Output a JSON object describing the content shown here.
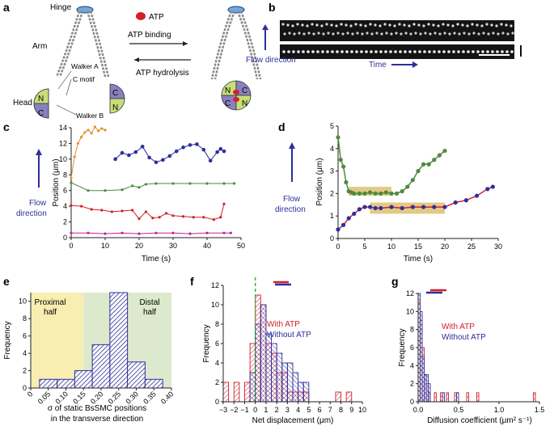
{
  "colors": {
    "blue": "#2e2e9c",
    "red": "#d0202a",
    "green": "#4e8a3e",
    "orange": "#e0922a",
    "magenta": "#c020a0",
    "lightgreen": "#c8dd78",
    "purple": "#8880c0",
    "yellow": "#f7eeb0",
    "paleGreen": "#dce9cc",
    "band": "#d7b860",
    "dashGreen": "#2fae3a"
  },
  "panels": {
    "a": "a",
    "b": "b",
    "c": "c",
    "d": "d",
    "e": "e",
    "f": "f",
    "g": "g"
  },
  "a": {
    "hinge": "Hinge",
    "arm": "Arm",
    "head": "Head",
    "walker_a": "Walker A",
    "walker_b": "Walker B",
    "c_motif": "C motif",
    "atp": "ATP",
    "atp_binding": "ATP binding",
    "atp_hydrolysis": "ATP hydrolysis",
    "n": "N",
    "c": "C"
  },
  "b": {
    "flow_direction": "Flow direction",
    "time": "Time"
  },
  "chart_data": [
    {
      "panel": "c",
      "type": "scatter",
      "xlabel": "Time (s)",
      "ylabel": "Position (μm)",
      "side_label_1": "Flow",
      "side_label_2": "direction",
      "xlim": [
        0,
        50
      ],
      "ylim": [
        0,
        14
      ],
      "xticks": [
        "0",
        "10",
        "20",
        "30",
        "40",
        "50"
      ],
      "yticks": [
        "0",
        "2",
        "4",
        "6",
        "8",
        "10",
        "12",
        "14"
      ],
      "series": [
        {
          "name": "orange",
          "color": "#e0922a",
          "x": [
            0,
            1,
            2,
            3,
            4,
            5,
            6,
            7,
            8,
            9,
            10
          ],
          "y": [
            7.6,
            10.3,
            12.0,
            12.8,
            13.4,
            13.7,
            13.3,
            14.1,
            13.6,
            13.9,
            13.7
          ]
        },
        {
          "name": "blue",
          "color": "#2e2e9c",
          "x": [
            13,
            15,
            17,
            19,
            21,
            23,
            25,
            27,
            29,
            31,
            33,
            35,
            37,
            39,
            41,
            43,
            44,
            45
          ],
          "y": [
            10.0,
            10.8,
            10.5,
            10.9,
            11.6,
            10.2,
            9.6,
            9.9,
            10.4,
            11.0,
            11.5,
            11.8,
            11.9,
            11.2,
            9.8,
            10.9,
            11.3,
            11.0
          ]
        },
        {
          "name": "green",
          "color": "#4e8a3e",
          "x": [
            0,
            5,
            10,
            15,
            18,
            20,
            22,
            25,
            30,
            35,
            40,
            45,
            48
          ],
          "y": [
            7.0,
            6.0,
            6.0,
            6.1,
            6.6,
            6.4,
            6.8,
            6.9,
            6.9,
            6.9,
            6.9,
            6.9,
            6.9
          ]
        },
        {
          "name": "red",
          "color": "#d0202a",
          "x": [
            0,
            3,
            6,
            9,
            12,
            15,
            18,
            20,
            22,
            24,
            26,
            28,
            30,
            33,
            36,
            39,
            42,
            44,
            45
          ],
          "y": [
            4.1,
            4.0,
            3.6,
            3.5,
            3.3,
            3.4,
            3.5,
            2.4,
            3.3,
            2.5,
            2.6,
            3.1,
            2.8,
            2.7,
            2.6,
            2.6,
            2.3,
            2.6,
            4.3
          ]
        },
        {
          "name": "magenta",
          "color": "#c020a0",
          "x": [
            0,
            5,
            10,
            15,
            20,
            25,
            30,
            35,
            40,
            45,
            47
          ],
          "y": [
            0.6,
            0.6,
            0.5,
            0.6,
            0.5,
            0.6,
            0.6,
            0.5,
            0.6,
            0.6,
            0.6
          ]
        }
      ]
    },
    {
      "panel": "d",
      "type": "scatter",
      "xlabel": "Time (s)",
      "ylabel": "Position (μm)",
      "side_label_1": "Flow",
      "side_label_2": "direction",
      "xlim": [
        0,
        30
      ],
      "ylim": [
        0,
        5
      ],
      "xticks": [
        "0",
        "5",
        "10",
        "15",
        "20",
        "25",
        "30"
      ],
      "yticks": [
        "0",
        "1",
        "2",
        "3",
        "4",
        "5"
      ],
      "series": [
        {
          "name": "green",
          "color": "#4e8a3e",
          "x": [
            0,
            0.5,
            1,
            1.5,
            2,
            2.5,
            3,
            4,
            5,
            6,
            7,
            8,
            9,
            10,
            11,
            12,
            13,
            14,
            15,
            16,
            17,
            18,
            19,
            20
          ],
          "y": [
            4.5,
            3.5,
            3.2,
            2.5,
            2.1,
            2.05,
            2.0,
            2.0,
            2.0,
            2.05,
            2.0,
            2.0,
            2.05,
            2.0,
            2.0,
            2.1,
            2.3,
            2.6,
            3.0,
            3.3,
            3.3,
            3.5,
            3.7,
            3.9
          ]
        },
        {
          "name": "blue",
          "color": "#2e2e9c",
          "x": [
            0,
            1,
            2,
            3,
            4,
            5,
            6,
            7,
            8,
            10,
            12,
            14,
            16,
            18,
            20,
            22,
            24,
            26,
            28,
            29
          ],
          "y": [
            0.4,
            0.6,
            0.9,
            1.1,
            1.3,
            1.4,
            1.4,
            1.35,
            1.35,
            1.4,
            1.35,
            1.4,
            1.4,
            1.4,
            1.4,
            1.6,
            1.7,
            1.9,
            2.2,
            2.3
          ]
        }
      ],
      "highlight_ranges": [
        {
          "x": [
            2,
            10
          ],
          "y": [
            1.9,
            2.3
          ]
        },
        {
          "x": [
            6,
            20
          ],
          "y": [
            1.1,
            1.6
          ]
        }
      ]
    },
    {
      "panel": "e",
      "type": "bar",
      "xlabel_1": "σ of static BsSMC positions",
      "xlabel_2": "in the transverse direction",
      "ylabel": "Frequency",
      "xlim": [
        0,
        0.4
      ],
      "ylim": [
        0,
        11
      ],
      "xticks": [
        "0",
        "0.05",
        "0.10",
        "0.15",
        "0.20",
        "0.25",
        "0.30",
        "0.35",
        "0.40"
      ],
      "yticks": [
        "0",
        "2",
        "4",
        "6",
        "8",
        "10"
      ],
      "region_labels": {
        "proximal_1": "Proximal",
        "proximal_2": "half",
        "distal_1": "Distal",
        "distal_2": "half"
      },
      "bins": [
        0.05,
        0.1,
        0.15,
        0.2,
        0.25,
        0.3,
        0.35
      ],
      "values": [
        1,
        1,
        2,
        5,
        11,
        3,
        1
      ]
    },
    {
      "panel": "f",
      "type": "bar",
      "xlabel": "Net displacement (μm)",
      "ylabel": "Frequency",
      "xlim": [
        -3,
        10
      ],
      "ylim": [
        0,
        12
      ],
      "xticks": [
        "−3",
        "−2",
        "−1",
        "0",
        "1",
        "2",
        "3",
        "4",
        "5",
        "6",
        "7",
        "8",
        "9",
        "10"
      ],
      "yticks": [
        "0",
        "2",
        "4",
        "6",
        "8",
        "10",
        "12"
      ],
      "legend": {
        "with": "With ATP",
        "without": "Without ATP"
      },
      "series": [
        {
          "name": "With ATP",
          "color": "#d0202a",
          "bin_starts": [
            -3,
            -2,
            -1,
            -0.5,
            0,
            0.5,
            1,
            1.5,
            2,
            2.5,
            3,
            3.5,
            4,
            4.5,
            7.5,
            8.5
          ],
          "values": [
            2,
            2,
            2,
            6,
            11,
            10,
            6,
            5,
            3,
            3,
            1,
            1,
            1,
            1,
            1,
            1
          ]
        },
        {
          "name": "Without ATP",
          "color": "#2e2e9c",
          "bin_starts": [
            -0.5,
            0,
            0.5,
            1,
            1.5,
            2,
            2.5,
            3,
            3.5,
            4,
            4.5
          ],
          "values": [
            3,
            8,
            10,
            7,
            6,
            5,
            4,
            4,
            3,
            2,
            2
          ]
        }
      ]
    },
    {
      "panel": "g",
      "type": "bar",
      "xlabel": "Diffusion coefficient (μm² s⁻¹)",
      "ylabel": "Frequency",
      "xlim": [
        0,
        1.5
      ],
      "ylim": [
        0,
        12
      ],
      "xticks": [
        "0.0",
        "0.5",
        "1.0",
        "1.5"
      ],
      "yticks": [
        "0",
        "2",
        "4",
        "6",
        "8",
        "10",
        "12"
      ],
      "legend": {
        "with": "With ATP",
        "without": "Without ATP"
      },
      "series": [
        {
          "name": "With ATP",
          "color": "#d0202a",
          "bin_starts": [
            0,
            0.025,
            0.05,
            0.075,
            0.1,
            0.125,
            0.2,
            0.275,
            0.35,
            0.45,
            0.6,
            0.725,
            1.425
          ],
          "values": [
            11,
            9,
            6,
            3,
            2,
            1,
            1,
            1,
            1,
            1,
            1,
            1,
            1
          ]
        },
        {
          "name": "Without ATP",
          "color": "#2e2e9c",
          "bin_starts": [
            0,
            0.025,
            0.05,
            0.075,
            0.1,
            0.125,
            0.3,
            0.475
          ],
          "values": [
            12,
            10,
            5,
            3,
            3,
            2,
            1,
            1
          ]
        }
      ]
    }
  ]
}
